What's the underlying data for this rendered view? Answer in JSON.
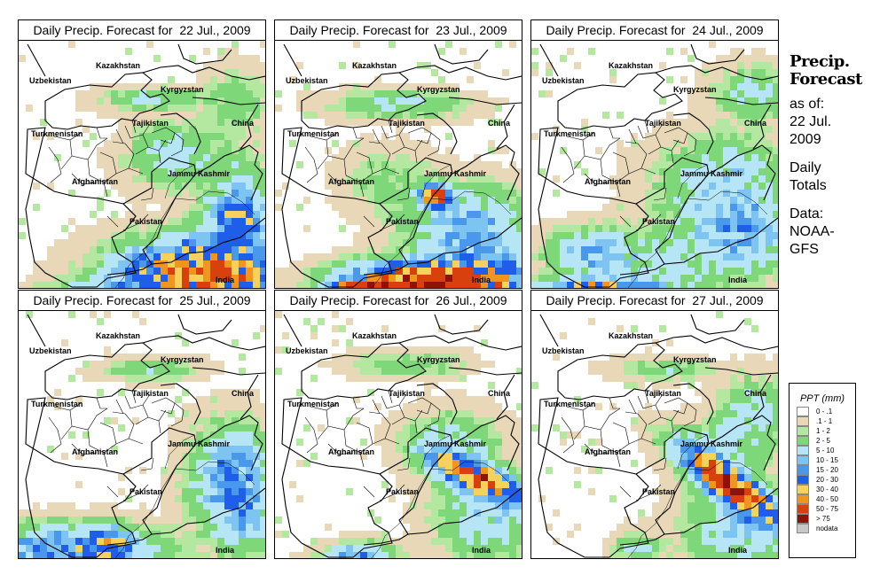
{
  "side_panel": {
    "heading_line1": "Precip.",
    "heading_line2": "Forecast",
    "as_of_label": "as of:",
    "date_line1": "22 Jul.",
    "date_line2": "2009",
    "totals_line1": "Daily",
    "totals_line2": "Totals",
    "data_line1": "Data:",
    "data_line2": "NOAA-",
    "data_line3": "GFS"
  },
  "panels": [
    {
      "title": "Daily Precip. Forecast for  22 Jul., 2009"
    },
    {
      "title": "Daily Precip. Forecast for  23 Jul., 2009"
    },
    {
      "title": "Daily Precip. Forecast for  24 Jul., 2009"
    },
    {
      "title": "Daily Precip. Forecast for  25 Jul., 2009"
    },
    {
      "title": "Daily Precip. Forecast for  26 Jul., 2009"
    },
    {
      "title": "Daily Precip. Forecast for  27 Jul., 2009"
    }
  ],
  "map_labels": {
    "uzbekistan": "Uzbekistan",
    "kazakhstan": "Kazakhstan",
    "kyrgyzstan": "Kyrgyzstan",
    "tajikistan": "Tajikistan",
    "china": "China",
    "turkmenistan": "Turkmenistan",
    "afghanistan": "Afghanistan",
    "jammu_kashmir": "Jammu Kashmir",
    "pakistan": "Pakistan",
    "india": "India"
  },
  "legend": {
    "title": "PPT (mm)",
    "entries": [
      {
        "label": "0 - .1",
        "color": "#ffffff"
      },
      {
        "label": ".1 - 1",
        "color": "#e8d8b8"
      },
      {
        "label": "1 - 2",
        "color": "#b4e8a0"
      },
      {
        "label": "2 - 5",
        "color": "#7ed87a"
      },
      {
        "label": "5 - 10",
        "color": "#b6e6f6"
      },
      {
        "label": "10 - 15",
        "color": "#7ec4f2"
      },
      {
        "label": "15 - 20",
        "color": "#4a98ec"
      },
      {
        "label": "20 - 30",
        "color": "#1e5ee8"
      },
      {
        "label": "30 - 40",
        "color": "#f6d25c"
      },
      {
        "label": "40 - 50",
        "color": "#f0961e"
      },
      {
        "label": "50 - 75",
        "color": "#d8400e"
      },
      {
        "label": "> 75",
        "color": "#8e1208"
      },
      {
        "label": "nodata",
        "color": "#c8c8c8"
      }
    ]
  }
}
